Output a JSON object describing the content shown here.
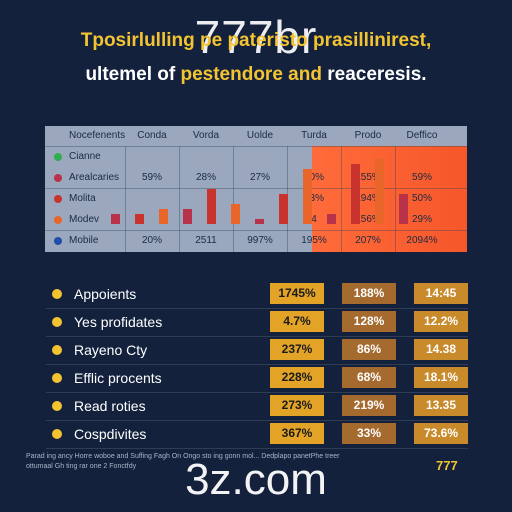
{
  "watermark_top": "777br",
  "watermark_bottom": "3z.com",
  "title_line1": "Tposirlulling pe pateristo prasillinirest,",
  "title_line2_pre": "ultemel of ",
  "title_line2_highlight": "pestendore and",
  "title_line2_post": " reaceresis.",
  "table": {
    "headers": [
      "Nocefenents",
      "Conda",
      "Vorda",
      "Uolde",
      "Turda",
      "Prodo",
      "Deffico"
    ],
    "rows": [
      {
        "label": "Cianne",
        "dot_color": "#2eae4f",
        "values": [
          "",
          "",
          "",
          "",
          "",
          ""
        ]
      },
      {
        "label": "Arealcaries",
        "dot_color": "#b8324a",
        "values": [
          "59%",
          "28%",
          "27%",
          "20%",
          "155%",
          "59%"
        ]
      },
      {
        "label": "Molita",
        "dot_color": "#c8332d",
        "values": [
          "",
          "",
          "",
          "13%",
          "194%",
          "50%"
        ]
      },
      {
        "label": "Modev",
        "dot_color": "#e8662a",
        "values": [
          "",
          "",
          "",
          "4",
          "156%",
          "29%"
        ]
      },
      {
        "label": "Mobile",
        "dot_color": "#1d4fa8",
        "values": [
          "20%",
          "2511",
          "997%",
          "195%",
          "207%",
          "2094%"
        ]
      }
    ],
    "bar_values": [
      2,
      2,
      3,
      3,
      7,
      4,
      1,
      6,
      11,
      2,
      12,
      13,
      6
    ]
  },
  "list": [
    {
      "label": "Appoients",
      "v1": "1745%",
      "v2": "188%",
      "v3": "14:45"
    },
    {
      "label": "Yes profidates",
      "v1": "4.7%",
      "v2": "128%",
      "v3": "12.2%"
    },
    {
      "label": "Rayeno Cty",
      "v1": "237%",
      "v2": "86%",
      "v3": "14.38"
    },
    {
      "label": "Efflic procents",
      "v1": "228%",
      "v2": "68%",
      "v3": "18.1%"
    },
    {
      "label": "Read roties",
      "v1": "273%",
      "v2": "219%",
      "v3": "13.35"
    },
    {
      "label": "Cospdivites",
      "v1": "367%",
      "v2": "33%",
      "v3": "73.6%"
    }
  ],
  "footer_text": "Parad ing ancy Horre woboe and Suffing Fagh On Ongo sto ing gonn mol... Dedplapo panetPhe treer ottumaal Gh ting rar one 2 Fonctfdy",
  "footer_brand": "777"
}
